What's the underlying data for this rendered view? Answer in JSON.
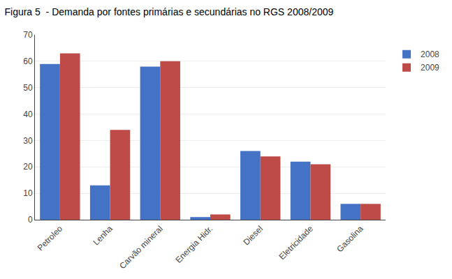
{
  "chart_data": {
    "type": "bar",
    "title": "Figura 5  - Demanda por fontes primárias e secundárias no RGS 2008/2009",
    "categories": [
      "Petroleo",
      "Lenha",
      "Carvão mineral",
      "Energia Hidr.",
      "Diesel",
      "Eletricidade",
      "Gasolina"
    ],
    "series": [
      {
        "name": "2008",
        "color": "#4472C4",
        "values": [
          59,
          13,
          58,
          1,
          26,
          22,
          6
        ]
      },
      {
        "name": "2009",
        "color": "#BE4B48",
        "values": [
          63,
          34,
          60,
          2,
          24,
          21,
          6
        ]
      }
    ],
    "ylim": [
      0,
      70
    ],
    "yticks": [
      0,
      10,
      20,
      30,
      40,
      50,
      60,
      70
    ],
    "grid": true,
    "legend": "right"
  }
}
